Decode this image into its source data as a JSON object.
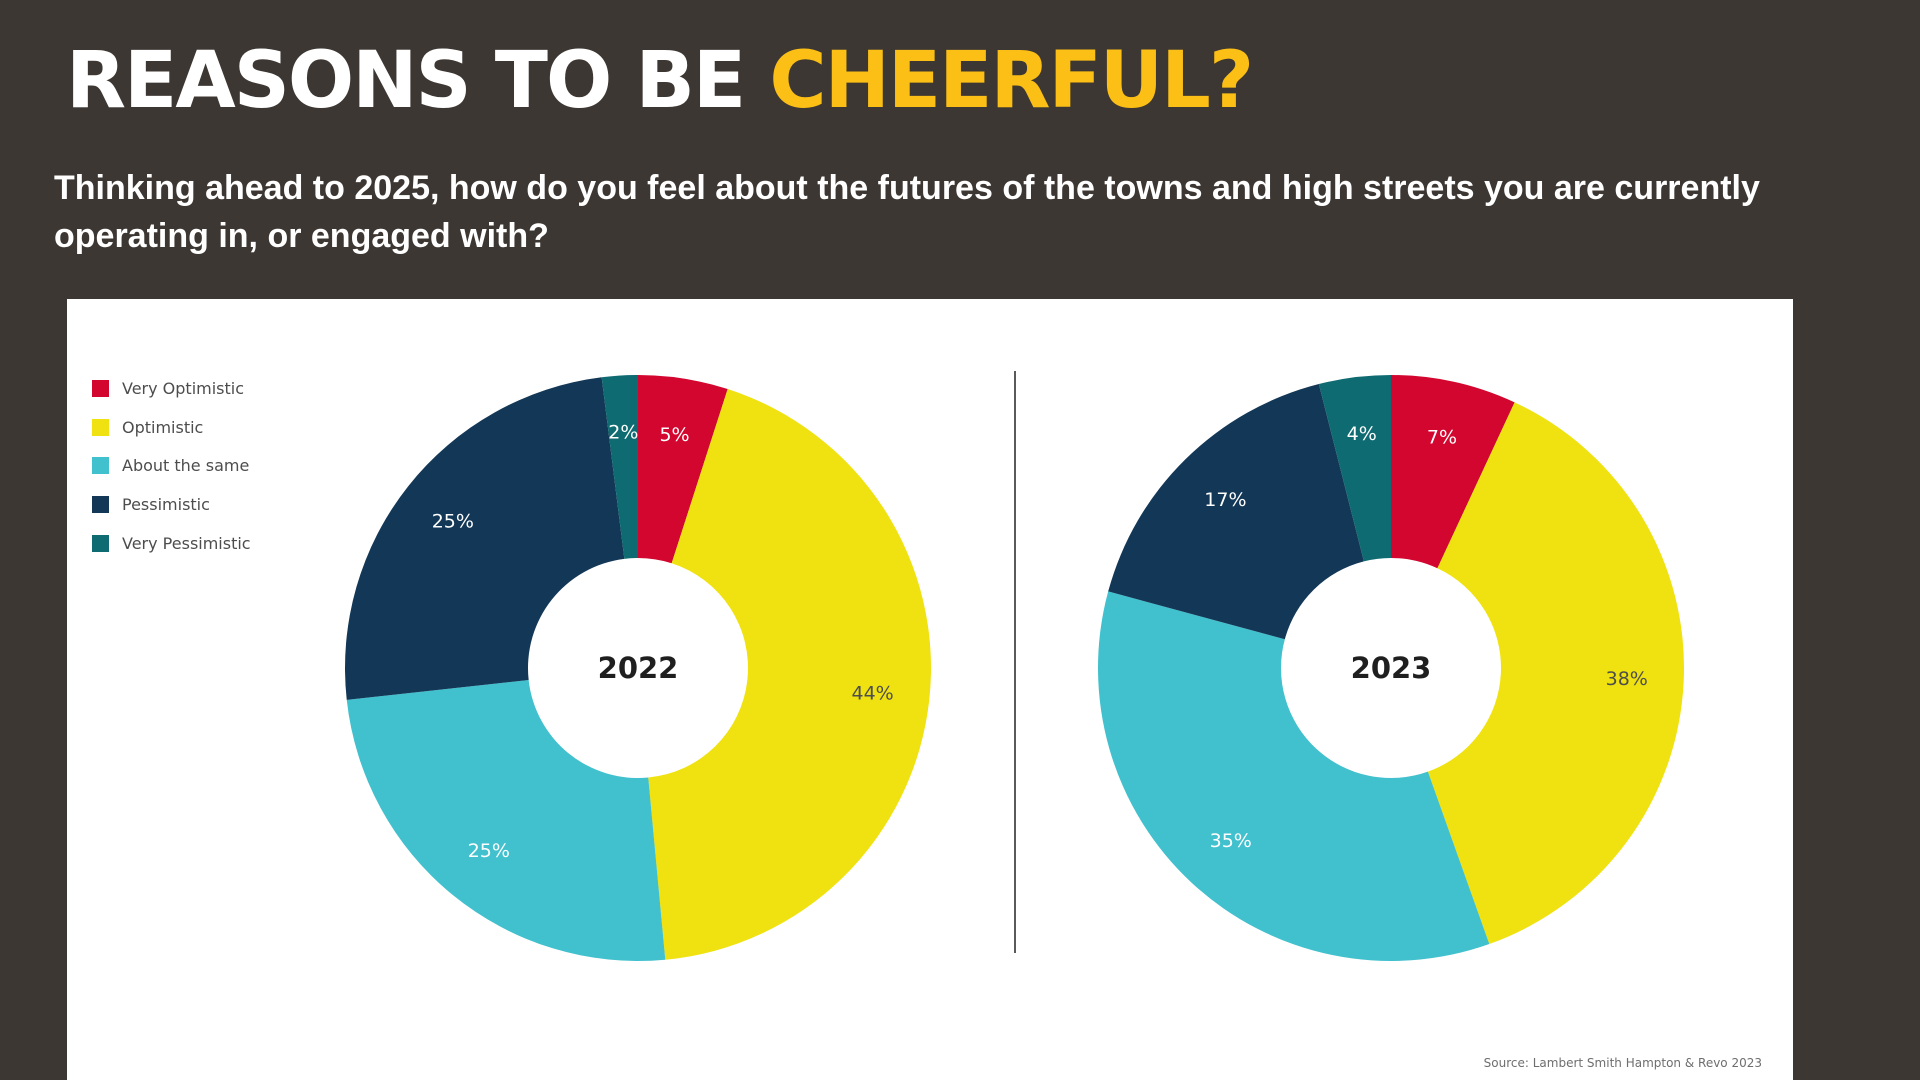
{
  "header": {
    "title_main": "REASONS TO BE ",
    "title_accent": "CHEERFUL?",
    "subtitle": "Thinking ahead to 2025, how do you feel about the futures of the towns and high streets you are currently operating in, or engaged with?"
  },
  "legend": [
    {
      "label": "Very Optimistic",
      "color": "#d2062e"
    },
    {
      "label": "Optimistic",
      "color": "#efe210"
    },
    {
      "label": "About the same",
      "color": "#41c0cd"
    },
    {
      "label": "Pessimistic",
      "color": "#133756"
    },
    {
      "label": "Very Pessimistic",
      "color": "#0f6b72"
    }
  ],
  "source": "Source: Lambert Smith Hampton & Revo 2023",
  "chart_data": [
    {
      "type": "pie",
      "center_label": "2022",
      "categories": [
        "Very Optimistic",
        "Optimistic",
        "About the same",
        "Pessimistic",
        "Very Pessimistic"
      ],
      "values": [
        5,
        44,
        25,
        25,
        2
      ],
      "data_labels": [
        "5%",
        "44%",
        "25%",
        "25%",
        "2%"
      ],
      "colors": [
        "#d2062e",
        "#efe210",
        "#41c0cd",
        "#133756",
        "#0f6b72"
      ],
      "label_colors": [
        "#ffffff",
        "#4d4d4d",
        "#ffffff",
        "#ffffff",
        "#ffffff"
      ]
    },
    {
      "type": "pie",
      "center_label": "2023",
      "categories": [
        "Very Optimistic",
        "Optimistic",
        "About the same",
        "Pessimistic",
        "Very Pessimistic"
      ],
      "values": [
        7,
        38,
        35,
        17,
        4
      ],
      "data_labels": [
        "7%",
        "38%",
        "35%",
        "17%",
        "4%"
      ],
      "colors": [
        "#d2062e",
        "#efe210",
        "#41c0cd",
        "#133756",
        "#0f6b72"
      ],
      "label_colors": [
        "#ffffff",
        "#4d4d4d",
        "#ffffff",
        "#ffffff",
        "#ffffff"
      ]
    }
  ]
}
